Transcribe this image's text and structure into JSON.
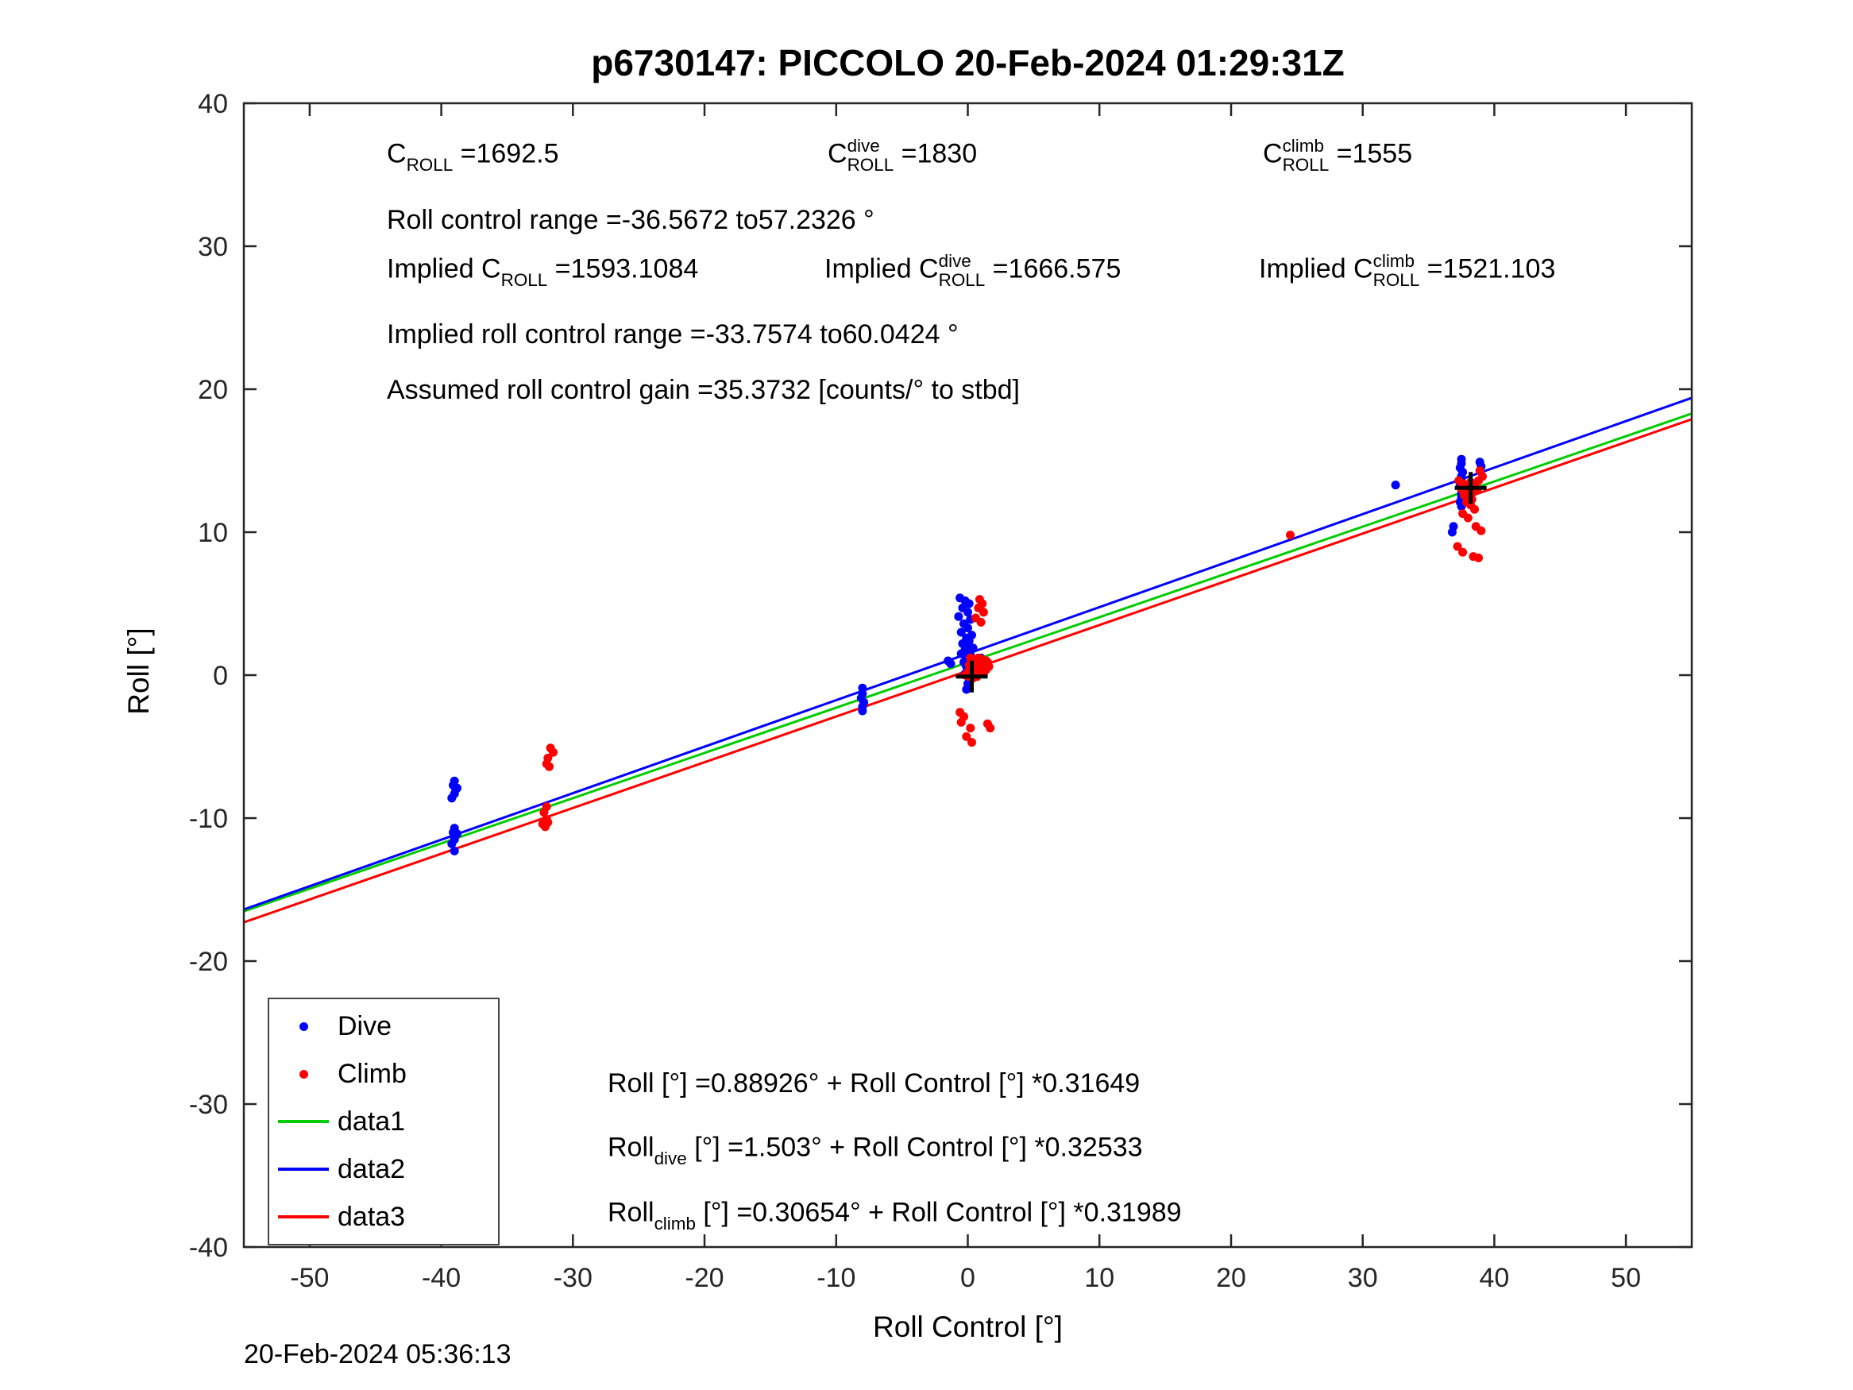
{
  "footer": {
    "timestamp": "20-Feb-2024 05:36:13"
  },
  "stats": {
    "c_roll": {
      "pre": "C",
      "sup": "",
      "sub": "ROLL",
      "post": " =1692.5"
    },
    "c_roll_dive": {
      "pre": "C",
      "sup": "dive",
      "sub": "ROLL",
      "post": " =1830"
    },
    "c_roll_climb": {
      "pre": "C",
      "sup": "climb",
      "sub": "ROLL",
      "post": " =1555"
    },
    "roll_control_range": "Roll control range =-36.5672 to57.2326 °",
    "implied_c_roll": {
      "pre": "Implied C",
      "sup": "",
      "sub": "ROLL",
      "post": " =1593.1084"
    },
    "implied_c_roll_dive": {
      "pre": "Implied C",
      "sup": "dive",
      "sub": "ROLL",
      "post": " =1666.575"
    },
    "implied_c_roll_climb": {
      "pre": "Implied C",
      "sup": "climb",
      "sub": "ROLL",
      "post": " =1521.103"
    },
    "implied_roll_control_range": "Implied roll control range =-33.7574 to60.0424 °",
    "assumed_gain": "Assumed roll control gain =35.3732 [counts/° to stbd]"
  },
  "equations": {
    "all": {
      "pre": "Roll",
      "sup": "",
      "sub": "",
      "post": " [°] =0.88926° + Roll Control [°] *0.31649"
    },
    "dive": {
      "pre": "Roll",
      "sup": "",
      "sub": "dive",
      "post": " [°] =1.503° + Roll Control [°] *0.32533"
    },
    "climb": {
      "pre": "Roll",
      "sup": "",
      "sub": "climb",
      "post": " [°] =0.30654° + Roll Control [°] *0.31989"
    }
  },
  "legend": {
    "items": [
      {
        "label": "Dive",
        "type": "dot",
        "color": "#0000ff"
      },
      {
        "label": "Climb",
        "type": "dot",
        "color": "#ff0000"
      },
      {
        "label": "data1",
        "type": "line",
        "color": "#00cc00"
      },
      {
        "label": "data2",
        "type": "line",
        "color": "#0000ff"
      },
      {
        "label": "data3",
        "type": "line",
        "color": "#ff0000"
      }
    ]
  },
  "chart_data": {
    "type": "scatter",
    "title": "p6730147: PICCOLO 20-Feb-2024 01:29:31Z",
    "xlabel": "Roll Control [°]",
    "ylabel": "Roll [°]",
    "xlim": [
      -55,
      55
    ],
    "ylim": [
      -40,
      40
    ],
    "xticks": [
      -50,
      -40,
      -30,
      -20,
      -10,
      0,
      10,
      20,
      30,
      40,
      50
    ],
    "yticks": [
      -40,
      -30,
      -20,
      -10,
      0,
      10,
      20,
      30,
      40
    ],
    "grid": false,
    "legend_position": "lower-left",
    "lines": [
      {
        "name": "data1",
        "color": "#00cc00",
        "intercept": 0.88926,
        "slope": 0.31649
      },
      {
        "name": "data2",
        "color": "#0000ff",
        "intercept": 1.503,
        "slope": 0.32533
      },
      {
        "name": "data3",
        "color": "#ff0000",
        "intercept": 0.30654,
        "slope": 0.31989
      }
    ],
    "series": [
      {
        "name": "Dive",
        "color": "#0000ff",
        "marker": "dot",
        "points": [
          [
            -39.0,
            -7.4
          ],
          [
            -39.1,
            -7.7
          ],
          [
            -38.9,
            -8.0
          ],
          [
            -39.0,
            -8.3
          ],
          [
            -39.2,
            -8.6
          ],
          [
            -38.8,
            -7.9
          ],
          [
            -39.0,
            -10.7
          ],
          [
            -39.1,
            -11.0
          ],
          [
            -38.9,
            -11.2
          ],
          [
            -39.0,
            -11.5
          ],
          [
            -39.2,
            -11.8
          ],
          [
            -38.8,
            -11.1
          ],
          [
            -39.0,
            -12.3
          ],
          [
            -8.0,
            -0.9
          ],
          [
            -8.0,
            -1.3
          ],
          [
            -8.1,
            -1.6
          ],
          [
            -7.9,
            -1.9
          ],
          [
            -8.0,
            -2.2
          ],
          [
            -8.0,
            -2.5
          ],
          [
            -0.6,
            5.4
          ],
          [
            -0.2,
            5.2
          ],
          [
            0.1,
            5.0
          ],
          [
            -0.4,
            4.7
          ],
          [
            0.0,
            4.4
          ],
          [
            -0.7,
            4.1
          ],
          [
            0.2,
            3.9
          ],
          [
            -0.3,
            3.6
          ],
          [
            0.0,
            3.3
          ],
          [
            -0.5,
            3.0
          ],
          [
            0.3,
            2.8
          ],
          [
            -0.1,
            2.6
          ],
          [
            0.1,
            2.4
          ],
          [
            -0.4,
            2.2
          ],
          [
            0.0,
            2.1
          ],
          [
            0.4,
            1.9
          ],
          [
            -0.2,
            1.8
          ],
          [
            0.1,
            1.6
          ],
          [
            -0.5,
            1.5
          ],
          [
            0.2,
            1.4
          ],
          [
            -0.1,
            1.2
          ],
          [
            0.0,
            1.1
          ],
          [
            0.3,
            1.0
          ],
          [
            -0.3,
            0.9
          ],
          [
            0.1,
            0.8
          ],
          [
            -0.1,
            0.6
          ],
          [
            0.2,
            0.5
          ],
          [
            0.0,
            0.3
          ],
          [
            -0.2,
            0.1
          ],
          [
            0.1,
            -0.2
          ],
          [
            0.0,
            -0.6
          ],
          [
            -0.1,
            -1.0
          ],
          [
            -1.5,
            1.0
          ],
          [
            -1.3,
            0.8
          ],
          [
            1.0,
            1.2
          ],
          [
            1.2,
            0.9
          ],
          [
            32.5,
            13.3
          ],
          [
            37.5,
            15.1
          ],
          [
            37.5,
            14.8
          ],
          [
            37.4,
            14.5
          ],
          [
            37.6,
            14.2
          ],
          [
            37.5,
            13.9
          ],
          [
            37.5,
            13.6
          ],
          [
            37.4,
            13.3
          ],
          [
            37.6,
            13.0
          ],
          [
            37.5,
            12.7
          ],
          [
            37.5,
            12.4
          ],
          [
            37.4,
            12.1
          ],
          [
            37.5,
            11.8
          ],
          [
            36.9,
            10.4
          ],
          [
            36.8,
            10.0
          ],
          [
            38.9,
            14.9
          ],
          [
            39.0,
            14.6
          ]
        ]
      },
      {
        "name": "Climb",
        "color": "#ff0000",
        "marker": "dot",
        "points": [
          [
            -31.7,
            -5.1
          ],
          [
            -31.5,
            -5.4
          ],
          [
            -31.9,
            -5.8
          ],
          [
            -32.0,
            -6.2
          ],
          [
            -31.8,
            -6.4
          ],
          [
            -32.0,
            -9.2
          ],
          [
            -32.2,
            -9.6
          ],
          [
            -32.0,
            -10.1
          ],
          [
            -32.3,
            -10.4
          ],
          [
            -32.1,
            -10.6
          ],
          [
            -31.9,
            -10.3
          ],
          [
            0.9,
            5.3
          ],
          [
            1.1,
            5.0
          ],
          [
            0.8,
            4.7
          ],
          [
            1.2,
            4.4
          ],
          [
            0.6,
            4.0
          ],
          [
            1.0,
            3.7
          ],
          [
            0.2,
            1.2
          ],
          [
            0.5,
            1.1
          ],
          [
            0.8,
            1.2
          ],
          [
            1.1,
            1.1
          ],
          [
            1.4,
            1.0
          ],
          [
            0.3,
            0.9
          ],
          [
            0.6,
            0.8
          ],
          [
            0.9,
            0.9
          ],
          [
            1.2,
            0.8
          ],
          [
            1.5,
            0.9
          ],
          [
            0.1,
            0.7
          ],
          [
            0.4,
            0.6
          ],
          [
            0.7,
            0.7
          ],
          [
            1.0,
            0.6
          ],
          [
            1.3,
            0.7
          ],
          [
            1.6,
            0.6
          ],
          [
            0.2,
            0.4
          ],
          [
            0.5,
            0.5
          ],
          [
            0.8,
            0.4
          ],
          [
            1.1,
            0.5
          ],
          [
            1.4,
            0.4
          ],
          [
            0.0,
            0.2
          ],
          [
            0.3,
            0.2
          ],
          [
            0.6,
            0.1
          ],
          [
            0.9,
            0.2
          ],
          [
            1.2,
            0.1
          ],
          [
            -0.2,
            0.0
          ],
          [
            0.1,
            -0.1
          ],
          [
            0.4,
            -0.2
          ],
          [
            0.7,
            -0.1
          ],
          [
            -0.3,
            -2.9
          ],
          [
            -0.5,
            -3.3
          ],
          [
            0.2,
            -3.7
          ],
          [
            -0.1,
            -4.3
          ],
          [
            0.3,
            -4.7
          ],
          [
            1.5,
            -3.4
          ],
          [
            1.7,
            -3.7
          ],
          [
            -0.6,
            -2.6
          ],
          [
            24.5,
            9.8
          ],
          [
            37.3,
            13.6
          ],
          [
            37.6,
            13.4
          ],
          [
            37.9,
            13.3
          ],
          [
            38.2,
            13.5
          ],
          [
            38.5,
            13.2
          ],
          [
            37.5,
            13.0
          ],
          [
            37.8,
            12.9
          ],
          [
            38.1,
            13.1
          ],
          [
            38.4,
            12.8
          ],
          [
            38.7,
            13.0
          ],
          [
            37.7,
            12.6
          ],
          [
            38.0,
            12.5
          ],
          [
            38.3,
            12.3
          ],
          [
            37.9,
            12.1
          ],
          [
            38.2,
            11.9
          ],
          [
            38.5,
            11.6
          ],
          [
            37.6,
            11.3
          ],
          [
            38.0,
            11.0
          ],
          [
            38.9,
            14.3
          ],
          [
            39.1,
            13.9
          ],
          [
            38.8,
            13.6
          ],
          [
            37.2,
            9.0
          ],
          [
            37.6,
            8.6
          ],
          [
            38.4,
            8.3
          ],
          [
            38.8,
            8.2
          ],
          [
            39.0,
            10.1
          ],
          [
            38.6,
            10.4
          ]
        ]
      },
      {
        "name": "cross-markers",
        "color": "#000000",
        "marker": "plus",
        "points": [
          [
            0.3,
            -0.1
          ],
          [
            38.2,
            13.1
          ]
        ]
      }
    ]
  }
}
